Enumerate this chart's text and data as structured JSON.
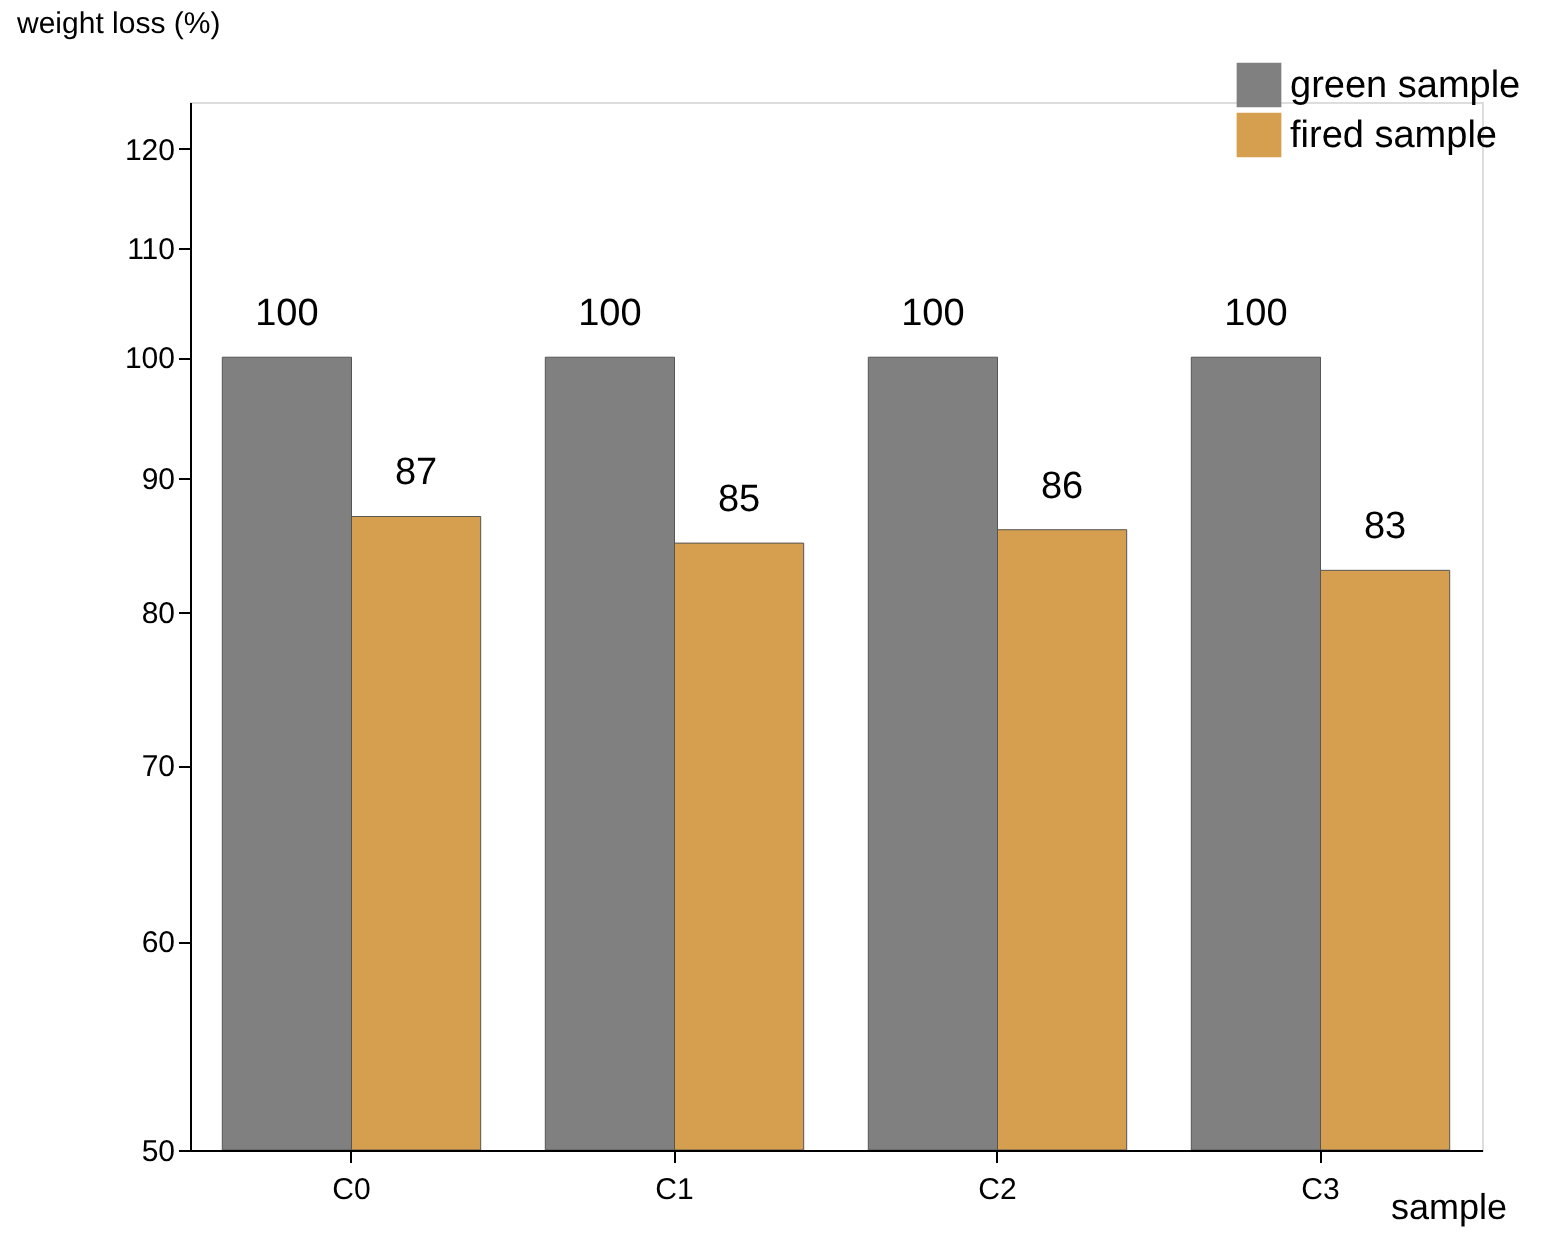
{
  "chart_data": {
    "type": "bar",
    "xlabel": "sample",
    "ylabel": "weight loss (%)",
    "categories": [
      "C0",
      "C1",
      "C2",
      "C3"
    ],
    "series": [
      {
        "name": "green sample",
        "color": "#808080",
        "values": [
          100,
          100,
          100,
          100
        ]
      },
      {
        "name": "fired sample",
        "color": "#d59f4f",
        "values": [
          87,
          85,
          86,
          83
        ]
      }
    ],
    "log": "y",
    "ylim": [
      50,
      125
    ],
    "yticks": [
      50,
      60,
      70,
      80,
      90,
      100,
      110,
      120
    ],
    "data_labels": true,
    "legend": "top right",
    "grid": false
  }
}
